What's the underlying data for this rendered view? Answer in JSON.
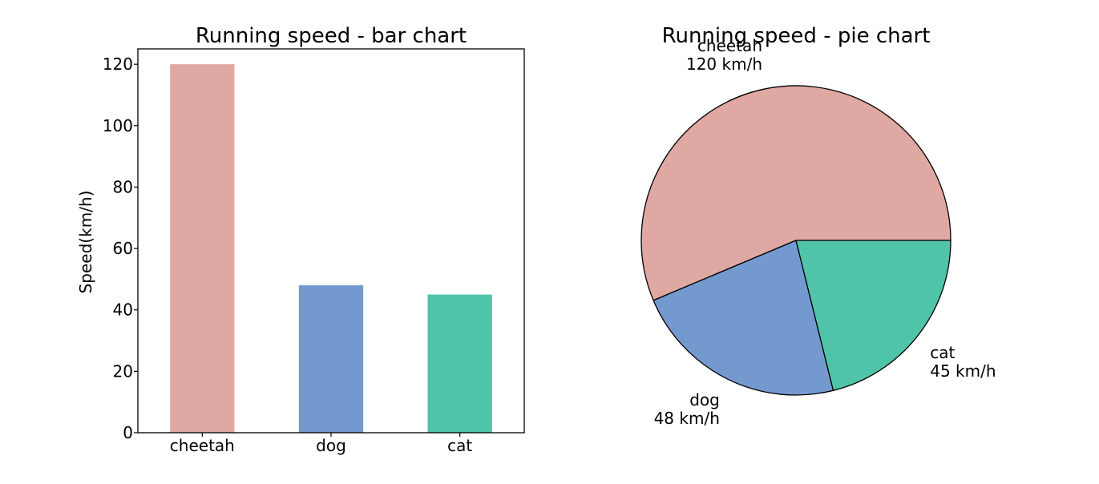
{
  "chart_data": [
    {
      "type": "bar",
      "title": "Running speed - bar chart",
      "xlabel": "",
      "ylabel": "Speed(km/h)",
      "categories": [
        "cheetah",
        "dog",
        "cat"
      ],
      "values": [
        120,
        48,
        45
      ],
      "colors": [
        "#e0a8a3",
        "#7499cf",
        "#50c4a9"
      ],
      "ylim": [
        0,
        125
      ],
      "yticks": [
        "0",
        "20",
        "40",
        "60",
        "80",
        "100",
        "120"
      ],
      "grid": false
    },
    {
      "type": "pie",
      "title": "Running speed - pie chart",
      "categories": [
        "cheetah",
        "dog",
        "cat"
      ],
      "values": [
        120,
        48,
        45
      ],
      "labels": [
        "120 km/h",
        "48 km/h",
        "45 km/h"
      ],
      "colors": [
        "#e0a8a3",
        "#7499cf",
        "#50c4a9"
      ]
    }
  ]
}
